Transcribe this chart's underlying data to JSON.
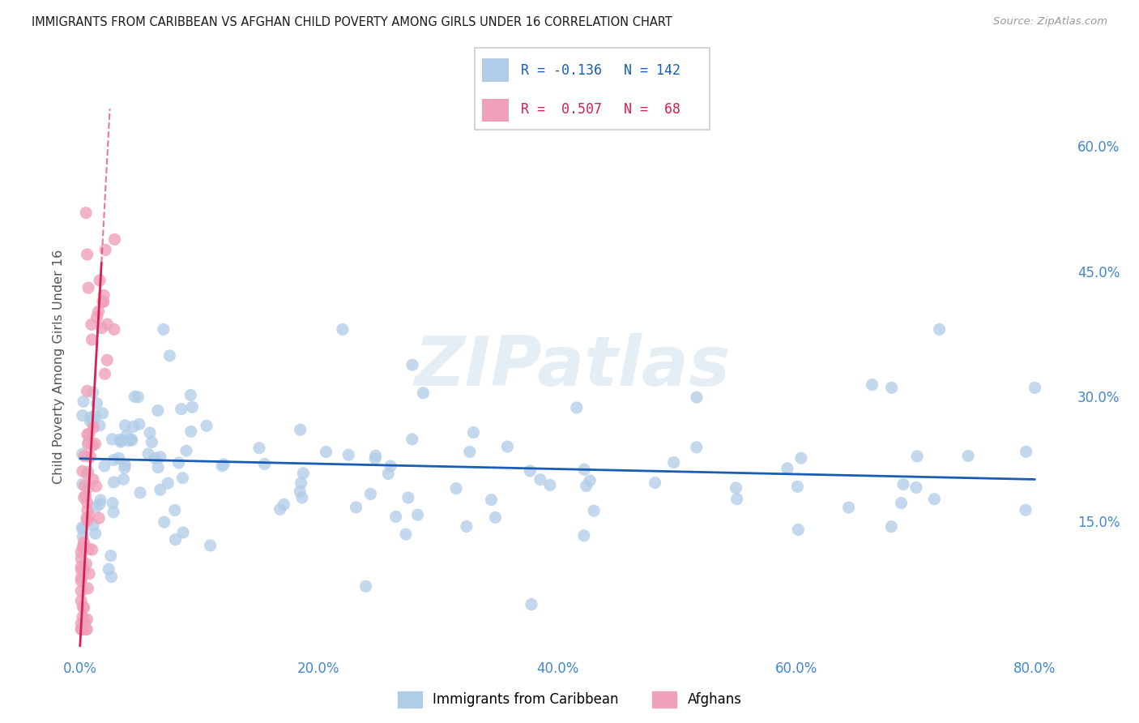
{
  "title": "IMMIGRANTS FROM CARIBBEAN VS AFGHAN CHILD POVERTY AMONG GIRLS UNDER 16 CORRELATION CHART",
  "source": "Source: ZipAtlas.com",
  "x_tick_labels": [
    "0.0%",
    "20.0%",
    "40.0%",
    "60.0%",
    "80.0%"
  ],
  "x_tick_pos": [
    0.0,
    0.2,
    0.4,
    0.6,
    0.8
  ],
  "y_tick_labels": [
    "15.0%",
    "30.0%",
    "45.0%",
    "60.0%"
  ],
  "y_tick_pos": [
    0.15,
    0.3,
    0.45,
    0.6
  ],
  "xlim": [
    -0.005,
    0.83
  ],
  "ylim": [
    -0.01,
    0.68
  ],
  "color_caribbean": "#b0cce8",
  "color_afghan": "#f0a0b8",
  "color_line_caribbean": "#1a5db5",
  "color_line_afghan": "#d42050",
  "watermark": "ZIPatlas",
  "ylabel": "Child Poverty Among Girls Under 16",
  "legend_label1": "Immigrants from Caribbean",
  "legend_label2": "Afghans",
  "R1": "-0.136",
  "N1": "142",
  "R2": "0.507",
  "N2": "68",
  "grid_color": "#d8d8d8",
  "title_color": "#1a1a1a",
  "tick_color": "#4488cc",
  "source_color": "#999999",
  "car_line_y_start": 0.225,
  "car_line_y_end": 0.2,
  "afg_line_x_start": 0.0,
  "afg_line_y_start": 0.0,
  "afg_line_x_solid_end": 0.018,
  "afg_line_y_solid_end": 0.46,
  "afg_line_x_dash_end": 0.025,
  "afg_line_y_dash_end": 0.645
}
